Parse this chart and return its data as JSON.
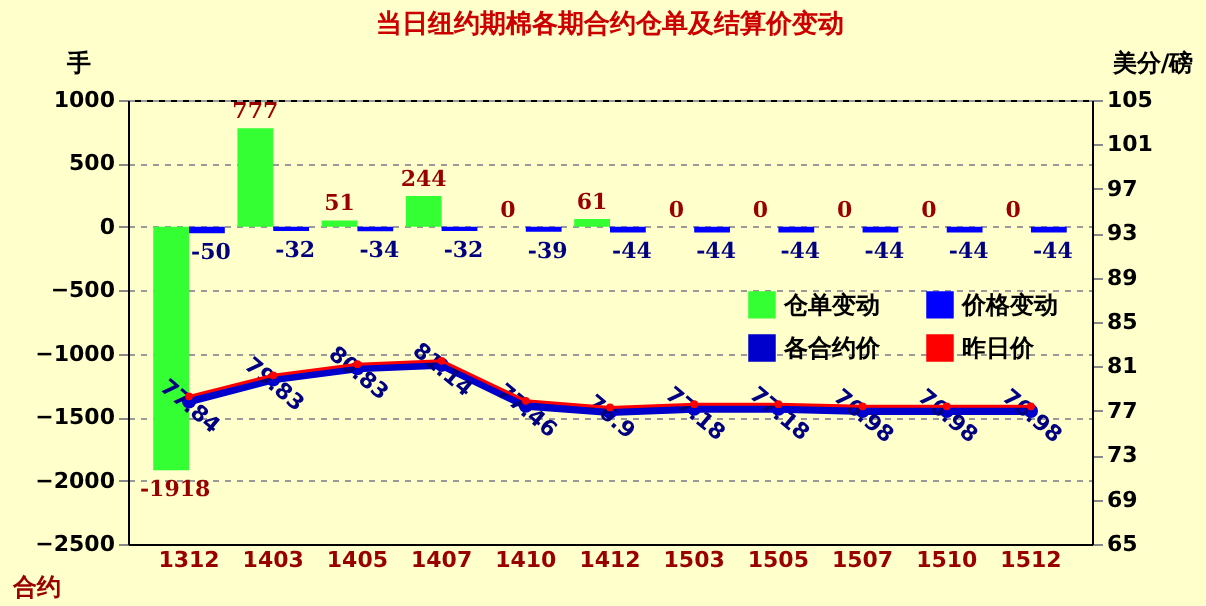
{
  "chart_data": {
    "type": "bar",
    "title": "当日纽约期棉各期合约仓单及结算价变动",
    "xlabel": "合约",
    "ylabel": "手",
    "y2label": "美分/磅",
    "categories": [
      "1312",
      "1403",
      "1405",
      "1407",
      "1410",
      "1412",
      "1503",
      "1505",
      "1507",
      "1510",
      "1512"
    ],
    "series": [
      {
        "name": "仓单变动",
        "color": "#33ff33",
        "values": [
          -1918,
          777,
          51,
          244,
          0,
          61,
          0,
          0,
          0,
          0,
          0
        ]
      },
      {
        "name": "价格变动",
        "color": "#0000ff",
        "values": [
          -50,
          -32,
          -34,
          -32,
          -39,
          -44,
          -44,
          -44,
          -44,
          -44,
          -44
        ]
      },
      {
        "name": "各合约价",
        "type": "line",
        "axis": "y2",
        "color": "#0000cc",
        "values": [
          77.84,
          79.83,
          80.83,
          81.14,
          77.46,
          76.9,
          77.18,
          77.18,
          76.98,
          76.98,
          76.98
        ]
      },
      {
        "name": "昨日价",
        "type": "line",
        "axis": "y2",
        "color": "#ff0000",
        "values": [
          78.3,
          80.2,
          81.2,
          81.5,
          77.9,
          77.3,
          77.6,
          77.6,
          77.4,
          77.4,
          77.4
        ],
        "data_labels": false
      }
    ],
    "ylim": [
      -2500,
      1000
    ],
    "yticks": [
      -2500,
      -2000,
      -1500,
      -1000,
      -500,
      0,
      500,
      1000
    ],
    "y2lim": [
      65,
      105
    ],
    "y2ticks": [
      65,
      69,
      73,
      77,
      81,
      85,
      89,
      93,
      97,
      101,
      105
    ],
    "grid": "y",
    "legend": "right",
    "marker": "circle",
    "data_labels": true
  }
}
